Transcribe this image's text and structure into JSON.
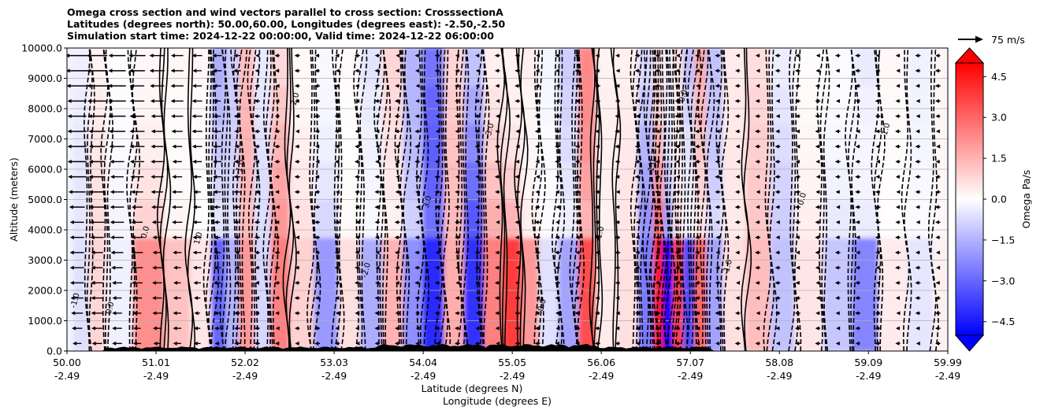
{
  "title": {
    "line1": "Omega cross section and wind vectors parallel to cross section: CrosssectionA",
    "line2": "Latitudes (degrees north): 50.00,60.00, Longitudes (degrees east): -2.50,-2.50",
    "line3": "Simulation start time: 2024-12-22 00:00:00, Valid time: 2024-12-22 06:00:00"
  },
  "quiver_key": {
    "label": "75 m/s"
  },
  "colorbar": {
    "label": "Omega Pa/s",
    "ticks": [
      "4.5",
      "3.0",
      "1.5",
      "0.0",
      "−1.5",
      "−3.0",
      "−4.5"
    ],
    "colors": {
      "max": "#ff0000",
      "zero": "#ffffff",
      "min": "#0000ff"
    }
  },
  "chart_data": {
    "type": "heatmap",
    "xlabel_lat": "Latitude (degrees N)",
    "xlabel_lon": "Longitude (degrees E)",
    "ylabel": "Altitude (meters)",
    "ylim": [
      0,
      10000
    ],
    "y_ticks": [
      "0.0",
      "1000.0",
      "2000.0",
      "3000.0",
      "4000.0",
      "5000.0",
      "6000.0",
      "7000.0",
      "8000.0",
      "9000.0",
      "10000.0"
    ],
    "x_ticks_lat": [
      "50.00",
      "51.01",
      "52.02",
      "53.03",
      "54.04",
      "55.05",
      "56.06",
      "57.07",
      "58.08",
      "59.09",
      "59.99"
    ],
    "x_ticks_lon": [
      "-2.49",
      "-2.49",
      "-2.49",
      "-2.49",
      "-2.49",
      "-2.49",
      "-2.49",
      "-2.49",
      "-2.49",
      "-2.49",
      "-2.49"
    ],
    "grid": true,
    "colorbar_range": [
      -5.0,
      5.0
    ],
    "contour_levels": [
      -3.0,
      -2.0,
      -1.0,
      0.0,
      1.0,
      2.0,
      3.0
    ],
    "omega_columns": [
      {
        "lat": 50.15,
        "omega": -0.6
      },
      {
        "lat": 50.35,
        "omega": 0.8
      },
      {
        "lat": 50.55,
        "omega": -0.3
      },
      {
        "lat": 50.95,
        "omega": 2.2
      },
      {
        "lat": 51.25,
        "omega": 1.2
      },
      {
        "lat": 51.55,
        "omega": 0.5
      },
      {
        "lat": 51.72,
        "omega": -3.0
      },
      {
        "lat": 51.88,
        "omega": -1.5
      },
      {
        "lat": 52.02,
        "omega": 2.0
      },
      {
        "lat": 52.22,
        "omega": -0.8
      },
      {
        "lat": 52.4,
        "omega": 2.5
      },
      {
        "lat": 52.65,
        "omega": 0.9
      },
      {
        "lat": 52.95,
        "omega": -2.0
      },
      {
        "lat": 53.2,
        "omega": 0.6
      },
      {
        "lat": 53.45,
        "omega": -1.6
      },
      {
        "lat": 53.7,
        "omega": 1.5
      },
      {
        "lat": 53.92,
        "omega": -2.2
      },
      {
        "lat": 54.15,
        "omega": -4.2
      },
      {
        "lat": 54.4,
        "omega": 1.6
      },
      {
        "lat": 54.6,
        "omega": -4.0
      },
      {
        "lat": 54.85,
        "omega": 2.5
      },
      {
        "lat": 55.05,
        "omega": 3.8
      },
      {
        "lat": 55.25,
        "omega": 2.0
      },
      {
        "lat": 55.45,
        "omega": -0.6
      },
      {
        "lat": 55.7,
        "omega": -1.8
      },
      {
        "lat": 55.9,
        "omega": 3.5
      },
      {
        "lat": 56.1,
        "omega": 0.4
      },
      {
        "lat": 56.35,
        "omega": 0.6
      },
      {
        "lat": 56.6,
        "omega": -2.6
      },
      {
        "lat": 56.7,
        "omega": 4.6
      },
      {
        "lat": 56.82,
        "omega": -5.0
      },
      {
        "lat": 56.92,
        "omega": 3.8
      },
      {
        "lat": 57.05,
        "omega": -3.5
      },
      {
        "lat": 57.18,
        "omega": 3.0
      },
      {
        "lat": 57.32,
        "omega": -1.8
      },
      {
        "lat": 57.55,
        "omega": 0.6
      },
      {
        "lat": 57.85,
        "omega": 1.3
      },
      {
        "lat": 58.1,
        "omega": -1.2
      },
      {
        "lat": 58.4,
        "omega": 0.5
      },
      {
        "lat": 58.75,
        "omega": -1.1
      },
      {
        "lat": 59.05,
        "omega": -2.4
      },
      {
        "lat": 59.35,
        "omega": 0.4
      },
      {
        "lat": 59.7,
        "omega": -0.5
      },
      {
        "lat": 59.95,
        "omega": 0.3
      }
    ],
    "contour_labels": [
      "0.0",
      "1.0",
      "-1.0",
      "2.0",
      "-2.0",
      "3.0",
      "-3.0",
      "0.0",
      "-1.0",
      "1.0",
      "0.0",
      "-1.0",
      "0.0",
      "1.0",
      "-1.0",
      "0.0"
    ]
  }
}
